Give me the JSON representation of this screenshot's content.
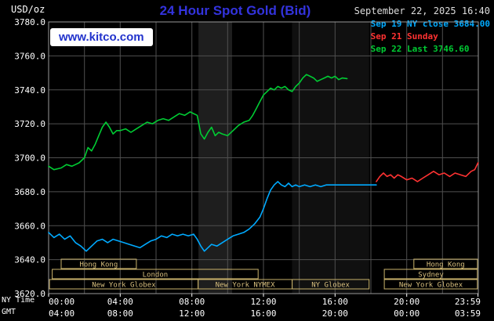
{
  "header": {
    "units_label": "USD/oz",
    "title": "24 Hour Spot Gold (Bid)",
    "datetime": "September 22, 2025 16:40",
    "logo_text": "www.kitco.com"
  },
  "legend": [
    {
      "id": "sep19",
      "label": "Sep 19 NY close 3684.00",
      "color": "#00aaff"
    },
    {
      "id": "sep21",
      "label": "Sep 21 Sunday",
      "color": "#ff3232"
    },
    {
      "id": "sep22",
      "label": "Sep 22 Last 3746.60",
      "color": "#00cc33"
    }
  ],
  "footer": {
    "ny_time_label": "NY Time",
    "gmt_label": "GMT"
  },
  "colors": {
    "background": "#000000",
    "grid": "#4f4f4f",
    "border": "#999999",
    "session_box": "#c9b26b",
    "title_blue": "#3333dd"
  },
  "chart_data": {
    "type": "line",
    "title": "24 Hour Spot Gold (Bid)",
    "ylabel": "USD/oz",
    "ylim": [
      3620,
      3780
    ],
    "xlim_hours": [
      0,
      24
    ],
    "grid": true,
    "legend_position": "top-right",
    "y_axis": {
      "values": [
        3780,
        3760,
        3740,
        3720,
        3700,
        3680,
        3660,
        3640,
        3620
      ],
      "labels": [
        "3780.0",
        "3760.0",
        "3740.0",
        "3720.0",
        "3700.0",
        "3680.0",
        "3660.0",
        "3640.0",
        "3620.0"
      ]
    },
    "x_axis": {
      "ny": [
        {
          "h": 0,
          "label": "00:00"
        },
        {
          "h": 4,
          "label": "04:00"
        },
        {
          "h": 8,
          "label": "08:00"
        },
        {
          "h": 12,
          "label": "12:00"
        },
        {
          "h": 16,
          "label": "16:00"
        },
        {
          "h": 20,
          "label": "20:00"
        },
        {
          "h": 23.983,
          "label": "23:59"
        }
      ],
      "gmt": [
        "04:00",
        "08:00",
        "12:00",
        "16:00",
        "20:00",
        "00:00",
        "03:59"
      ]
    },
    "bands": [
      {
        "start": 8.37,
        "end": 10.25,
        "color": "#1e1e1e"
      },
      {
        "start": 13.6,
        "end": 17.9,
        "color": "#101010"
      }
    ],
    "sessions": [
      {
        "label": "Hong Kong",
        "row": 0,
        "start": 0.7,
        "end": 4.9
      },
      {
        "label": "Hong Kong",
        "row": 0,
        "start": 20.4,
        "end": 23.95
      },
      {
        "label": "London",
        "row": 1,
        "start": 0.2,
        "end": 11.7
      },
      {
        "label": "Sydney",
        "row": 1,
        "start": 18.75,
        "end": 23.95
      },
      {
        "label": "New York Globex",
        "row": 2,
        "start": 0.05,
        "end": 8.35
      },
      {
        "label": "New York NYMEX",
        "row": 2,
        "start": 8.35,
        "end": 13.6
      },
      {
        "label": "NY Globex",
        "row": 2,
        "start": 13.6,
        "end": 17.9
      },
      {
        "label": "New York Globex",
        "row": 2,
        "start": 18.75,
        "end": 23.95
      }
    ],
    "series": [
      {
        "id": "sep19",
        "name": "Sep 19 NY close 3684.00",
        "color": "#00aaff",
        "points": [
          [
            0,
            3656
          ],
          [
            0.3,
            3653
          ],
          [
            0.6,
            3655
          ],
          [
            0.9,
            3652
          ],
          [
            1.2,
            3654
          ],
          [
            1.5,
            3650
          ],
          [
            1.8,
            3648
          ],
          [
            2.1,
            3645
          ],
          [
            2.4,
            3648
          ],
          [
            2.7,
            3651
          ],
          [
            3,
            3652
          ],
          [
            3.3,
            3650
          ],
          [
            3.6,
            3652
          ],
          [
            3.9,
            3651
          ],
          [
            4.2,
            3650
          ],
          [
            4.5,
            3649
          ],
          [
            4.8,
            3648
          ],
          [
            5.1,
            3647
          ],
          [
            5.4,
            3649
          ],
          [
            5.7,
            3651
          ],
          [
            6,
            3652
          ],
          [
            6.3,
            3654
          ],
          [
            6.6,
            3653
          ],
          [
            6.9,
            3655
          ],
          [
            7.2,
            3654
          ],
          [
            7.5,
            3655
          ],
          [
            7.8,
            3654
          ],
          [
            8.1,
            3655
          ],
          [
            8.3,
            3652
          ],
          [
            8.5,
            3648
          ],
          [
            8.7,
            3645
          ],
          [
            8.9,
            3647
          ],
          [
            9.1,
            3649
          ],
          [
            9.4,
            3648
          ],
          [
            9.7,
            3650
          ],
          [
            10,
            3652
          ],
          [
            10.3,
            3654
          ],
          [
            10.6,
            3655
          ],
          [
            10.9,
            3656
          ],
          [
            11.2,
            3658
          ],
          [
            11.5,
            3661
          ],
          [
            11.8,
            3665
          ],
          [
            12,
            3670
          ],
          [
            12.2,
            3676
          ],
          [
            12.4,
            3681
          ],
          [
            12.6,
            3684
          ],
          [
            12.8,
            3686
          ],
          [
            13,
            3684
          ],
          [
            13.2,
            3683
          ],
          [
            13.4,
            3685
          ],
          [
            13.6,
            3683
          ],
          [
            13.8,
            3684
          ],
          [
            14,
            3683
          ],
          [
            14.3,
            3684
          ],
          [
            14.6,
            3683
          ],
          [
            14.9,
            3684
          ],
          [
            15.2,
            3683
          ],
          [
            15.5,
            3684
          ],
          [
            15.8,
            3684
          ],
          [
            16,
            3684
          ],
          [
            17,
            3684
          ],
          [
            18.3,
            3684
          ]
        ]
      },
      {
        "id": "sep21",
        "name": "Sep 21 Sunday",
        "color": "#ff3232",
        "points": [
          [
            18.3,
            3686
          ],
          [
            18.5,
            3689
          ],
          [
            18.7,
            3691
          ],
          [
            18.9,
            3689
          ],
          [
            19.1,
            3690
          ],
          [
            19.3,
            3688
          ],
          [
            19.5,
            3690
          ],
          [
            19.7,
            3689
          ],
          [
            20,
            3687
          ],
          [
            20.3,
            3688
          ],
          [
            20.6,
            3686
          ],
          [
            20.9,
            3688
          ],
          [
            21.2,
            3690
          ],
          [
            21.5,
            3692
          ],
          [
            21.8,
            3690
          ],
          [
            22.1,
            3691
          ],
          [
            22.4,
            3689
          ],
          [
            22.7,
            3691
          ],
          [
            23,
            3690
          ],
          [
            23.3,
            3689
          ],
          [
            23.6,
            3692
          ],
          [
            23.8,
            3693
          ],
          [
            23.983,
            3697
          ]
        ]
      },
      {
        "id": "sep22",
        "name": "Sep 22 Last 3746.60",
        "color": "#00cc33",
        "points": [
          [
            0,
            3695
          ],
          [
            0.3,
            3693
          ],
          [
            0.7,
            3694
          ],
          [
            1,
            3696
          ],
          [
            1.3,
            3695
          ],
          [
            1.7,
            3697
          ],
          [
            2,
            3700
          ],
          [
            2.2,
            3706
          ],
          [
            2.4,
            3704
          ],
          [
            2.6,
            3708
          ],
          [
            2.8,
            3713
          ],
          [
            3,
            3718
          ],
          [
            3.2,
            3721
          ],
          [
            3.4,
            3718
          ],
          [
            3.6,
            3714
          ],
          [
            3.8,
            3716
          ],
          [
            4,
            3716
          ],
          [
            4.3,
            3717
          ],
          [
            4.6,
            3715
          ],
          [
            4.9,
            3717
          ],
          [
            5.2,
            3719
          ],
          [
            5.5,
            3721
          ],
          [
            5.8,
            3720
          ],
          [
            6.1,
            3722
          ],
          [
            6.4,
            3723
          ],
          [
            6.7,
            3722
          ],
          [
            7,
            3724
          ],
          [
            7.3,
            3726
          ],
          [
            7.6,
            3725
          ],
          [
            7.9,
            3727
          ],
          [
            8.1,
            3726
          ],
          [
            8.3,
            3725
          ],
          [
            8.5,
            3714
          ],
          [
            8.7,
            3711
          ],
          [
            8.9,
            3715
          ],
          [
            9.1,
            3718
          ],
          [
            9.3,
            3713
          ],
          [
            9.5,
            3715
          ],
          [
            9.7,
            3714
          ],
          [
            10,
            3713
          ],
          [
            10.3,
            3716
          ],
          [
            10.6,
            3719
          ],
          [
            10.9,
            3721
          ],
          [
            11.2,
            3722
          ],
          [
            11.4,
            3725
          ],
          [
            11.6,
            3729
          ],
          [
            11.8,
            3733
          ],
          [
            12,
            3737
          ],
          [
            12.2,
            3739
          ],
          [
            12.4,
            3741
          ],
          [
            12.6,
            3740
          ],
          [
            12.8,
            3742
          ],
          [
            13,
            3741
          ],
          [
            13.2,
            3742
          ],
          [
            13.4,
            3740
          ],
          [
            13.6,
            3739
          ],
          [
            13.8,
            3742
          ],
          [
            14,
            3744
          ],
          [
            14.2,
            3747
          ],
          [
            14.4,
            3749
          ],
          [
            14.6,
            3748
          ],
          [
            14.8,
            3747
          ],
          [
            15,
            3745
          ],
          [
            15.2,
            3746
          ],
          [
            15.4,
            3747
          ],
          [
            15.6,
            3748
          ],
          [
            15.8,
            3747
          ],
          [
            16,
            3748
          ],
          [
            16.2,
            3746
          ],
          [
            16.4,
            3747
          ],
          [
            16.67,
            3746.6
          ]
        ]
      }
    ]
  }
}
